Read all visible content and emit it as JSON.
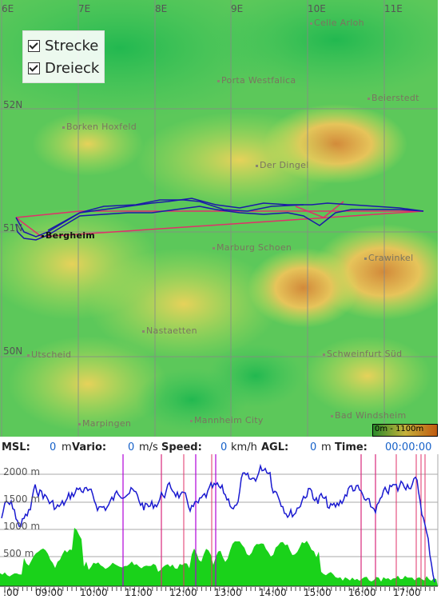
{
  "map": {
    "grid_lon_labels": [
      "6E",
      "7E",
      "8E",
      "9E",
      "10E",
      "11E"
    ],
    "grid_lat_labels": [
      "52N",
      "51N",
      "50N"
    ],
    "places": [
      {
        "name": "Celle Arloh"
      },
      {
        "name": "Porta Westfalica"
      },
      {
        "name": "Beierstedt"
      },
      {
        "name": "Borken Hoxfeld"
      },
      {
        "name": "Der Dingel"
      },
      {
        "name": "Bergheim"
      },
      {
        "name": "Marburg Schoen"
      },
      {
        "name": "Crawinkel"
      },
      {
        "name": "Nastaetten"
      },
      {
        "name": "Utscheid"
      },
      {
        "name": "Schweinfurt Süd"
      },
      {
        "name": "Marpingen"
      },
      {
        "name": "Mannheim City"
      },
      {
        "name": "Bad Windsheim"
      }
    ],
    "scale_label": "0m - 1100m",
    "legend": {
      "strecke": "Strecke",
      "dreieck": "Dreieck"
    },
    "colors": {
      "track": "#1a1aa8",
      "task": "#e0306a",
      "legend_check": "#222222"
    }
  },
  "status": {
    "msl_label": "MSL:",
    "msl_value": "0",
    "msl_unit": "m",
    "vario_label": "Vario:",
    "vario_value": "0",
    "vario_unit": "m/s",
    "speed_label": "Speed:",
    "speed_value": "0",
    "speed_unit": "km/h",
    "agl_label": "AGL:",
    "agl_value": "0",
    "agl_unit": "m",
    "time_label": "Time:",
    "time_value": "00:00:00"
  },
  "barogram": {
    "alt_labels": [
      "2000 m",
      "1500 m",
      "1000 m",
      "500 m"
    ],
    "time_labels": [
      ":00",
      "09:00",
      "10:00",
      "11:00",
      "12:00",
      "13:00",
      "14:00",
      "15:00",
      "16:00",
      "17:00"
    ],
    "colors": {
      "altitude": "#1a1ad0",
      "ground": "#1ad21a",
      "marker_purple": "#b000d8",
      "marker_pink": "#e0306a"
    }
  }
}
